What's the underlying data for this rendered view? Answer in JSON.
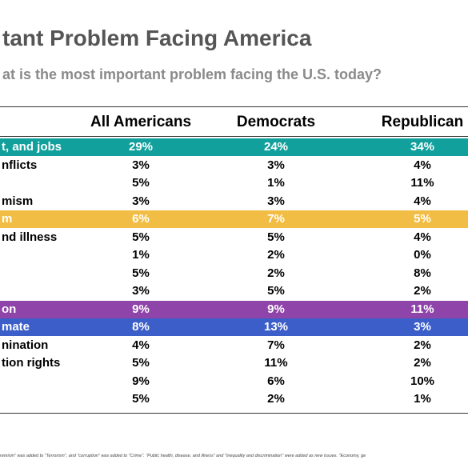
{
  "header": {
    "title": "tant Problem Facing America",
    "subtitle": "at is the most important problem facing the U.S. today?"
  },
  "table": {
    "columns": [
      "All Americans",
      "Democrats",
      "Republican"
    ],
    "rows": [
      {
        "label": "t, and jobs",
        "color": "#12a09c",
        "values": [
          "29%",
          "24%",
          "34%"
        ]
      },
      {
        "label": "nflicts",
        "values": [
          "3%",
          "3%",
          "4%"
        ]
      },
      {
        "label": null,
        "values": [
          "5%",
          "1%",
          "11%"
        ]
      },
      {
        "label": "mism",
        "values": [
          "3%",
          "3%",
          "4%"
        ]
      },
      {
        "label": "m",
        "color": "#f1bd44",
        "values": [
          "6%",
          "7%",
          "5%"
        ]
      },
      {
        "label": "nd illness",
        "values": [
          "5%",
          "5%",
          "4%"
        ]
      },
      {
        "label": null,
        "values": [
          "1%",
          "2%",
          "0%"
        ]
      },
      {
        "label": null,
        "values": [
          "5%",
          "2%",
          "8%"
        ]
      },
      {
        "label": null,
        "values": [
          "3%",
          "5%",
          "2%"
        ]
      },
      {
        "label": "on",
        "color": "#8e44a8",
        "values": [
          "9%",
          "9%",
          "11%"
        ]
      },
      {
        "label": "mate",
        "color": "#3b5ec8",
        "values": [
          "8%",
          "13%",
          "3%"
        ]
      },
      {
        "label": "nination",
        "values": [
          "4%",
          "7%",
          "2%"
        ]
      },
      {
        "label": "tion rights",
        "values": [
          "5%",
          "11%",
          "2%"
        ]
      },
      {
        "label": null,
        "values": [
          "9%",
          "6%",
          "10%"
        ]
      },
      {
        "label": null,
        "values": [
          "5%",
          "2%",
          "1%"
        ]
      }
    ]
  },
  "footnote": "remism\" was added to \"Terrorism\", and \"corruption\" was added to \"Crime\". \"Public health, disease, and illness\" and \"Inequality and discrimination\" were added as new issues. \"Economy, ge"
}
